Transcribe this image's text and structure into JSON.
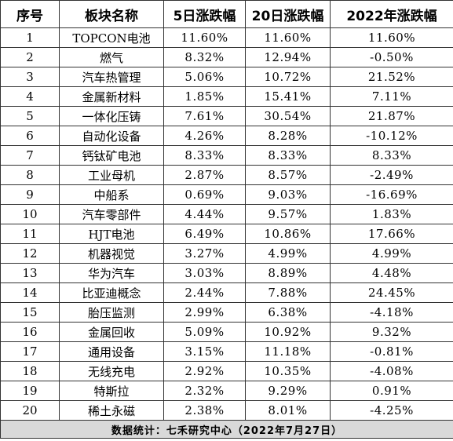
{
  "table": {
    "headers": [
      "序号",
      "板块名称",
      "5日涨跌幅",
      "20日涨跌幅",
      "2022年涨跌幅"
    ],
    "rows": [
      [
        "1",
        "TOPCON电池",
        "11.60%",
        "11.60%",
        "11.60%"
      ],
      [
        "2",
        "燃气",
        "8.32%",
        "12.94%",
        "-0.50%"
      ],
      [
        "3",
        "汽车热管理",
        "5.06%",
        "10.72%",
        "21.52%"
      ],
      [
        "4",
        "金属新材料",
        "1.85%",
        "15.41%",
        "7.11%"
      ],
      [
        "5",
        "一体化压铸",
        "7.61%",
        "30.54%",
        "21.87%"
      ],
      [
        "6",
        "自动化设备",
        "4.26%",
        "8.28%",
        "-10.12%"
      ],
      [
        "7",
        "钙钛矿电池",
        "8.33%",
        "8.33%",
        "8.33%"
      ],
      [
        "8",
        "工业母机",
        "2.87%",
        "8.57%",
        "-2.49%"
      ],
      [
        "9",
        "中船系",
        "0.69%",
        "9.03%",
        "-16.69%"
      ],
      [
        "10",
        "汽车零部件",
        "4.44%",
        "9.57%",
        "1.83%"
      ],
      [
        "11",
        "HJT电池",
        "6.49%",
        "10.86%",
        "17.66%"
      ],
      [
        "12",
        "机器视觉",
        "3.27%",
        "4.99%",
        "4.99%"
      ],
      [
        "13",
        "华为汽车",
        "3.03%",
        "8.89%",
        "4.48%"
      ],
      [
        "14",
        "比亚迪概念",
        "2.44%",
        "7.88%",
        "24.45%"
      ],
      [
        "15",
        "胎压监测",
        "2.99%",
        "6.38%",
        "-4.18%"
      ],
      [
        "16",
        "金属回收",
        "5.09%",
        "10.92%",
        "9.32%"
      ],
      [
        "17",
        "通用设备",
        "3.15%",
        "11.18%",
        "-0.81%"
      ],
      [
        "18",
        "无线充电",
        "2.92%",
        "10.35%",
        "-4.08%"
      ],
      [
        "19",
        "特斯拉",
        "2.32%",
        "9.29%",
        "0.91%"
      ],
      [
        "20",
        "稀土永磁",
        "2.38%",
        "8.01%",
        "-4.25%"
      ]
    ],
    "footer": "数据统计：七禾研究中心（2022年7月27日）"
  },
  "colors": {
    "border": "#333333",
    "footer_bg": "#d9d9d9"
  }
}
